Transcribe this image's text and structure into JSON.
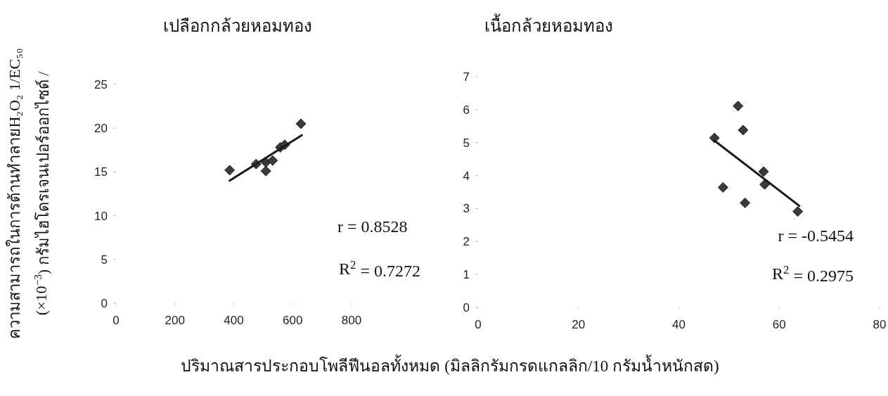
{
  "chart_data": [
    {
      "type": "scatter",
      "title": "เปลือกกล้วยหอมทอง",
      "ylabel": "ความสามารถในการต้านทำลายH₂O₂  1/EC₅₀\n(×10$^{−3}$) กรัมไฮโดรเจนเปอร์ออกไซด์ /",
      "xlabel": "ปริมาณสารประกอบโพลีฟีนอลทั้งหมด (มิลลิกรัมกรดแกลลิก/10 กรัมน้ำหนักสด)",
      "xlim": [
        0,
        800
      ],
      "xticks": [
        0,
        200,
        400,
        600,
        800
      ],
      "ylim": [
        0,
        25
      ],
      "yticks": [
        0,
        5,
        10,
        15,
        20,
        25
      ],
      "grid": false,
      "series": [
        {
          "type": "scatter",
          "marker": "diamond",
          "color": "#3a3a3a",
          "x": [
            386,
            476,
            509,
            509,
            532,
            558,
            573,
            628
          ],
          "values": [
            15.2,
            15.9,
            15.1,
            16.1,
            16.3,
            17.8,
            18.1,
            20.5
          ]
        },
        {
          "type": "line",
          "color": "#1a1a1a",
          "x": [
            386,
            631
          ],
          "values": [
            14.0,
            19.2
          ]
        }
      ],
      "annotations": [
        "r = 0.8528",
        "R$^{2}$ = 0.7272"
      ]
    },
    {
      "type": "scatter",
      "title": "เนื้อกล้วยหอมทอง",
      "xlim": [
        0,
        80
      ],
      "xticks": [
        0,
        20,
        40,
        60,
        80
      ],
      "ylim": [
        0,
        7
      ],
      "yticks": [
        0,
        1,
        2,
        3,
        4,
        5,
        6,
        7
      ],
      "grid": false,
      "series": [
        {
          "type": "scatter",
          "marker": "diamond",
          "color": "#3a3a3a",
          "x": [
            47.1,
            51.8,
            52.8,
            48.8,
            53.2,
            56.9,
            57.1,
            63.7
          ],
          "values": [
            5.14,
            6.11,
            5.38,
            3.64,
            3.17,
            4.12,
            3.73,
            2.91
          ]
        },
        {
          "type": "line",
          "color": "#1a1a1a",
          "x": [
            47.1,
            64.0
          ],
          "values": [
            5.06,
            3.08
          ]
        }
      ],
      "annotations": [
        "r = -0.5454",
        "R$^{2}$ = 0.2975"
      ]
    }
  ]
}
